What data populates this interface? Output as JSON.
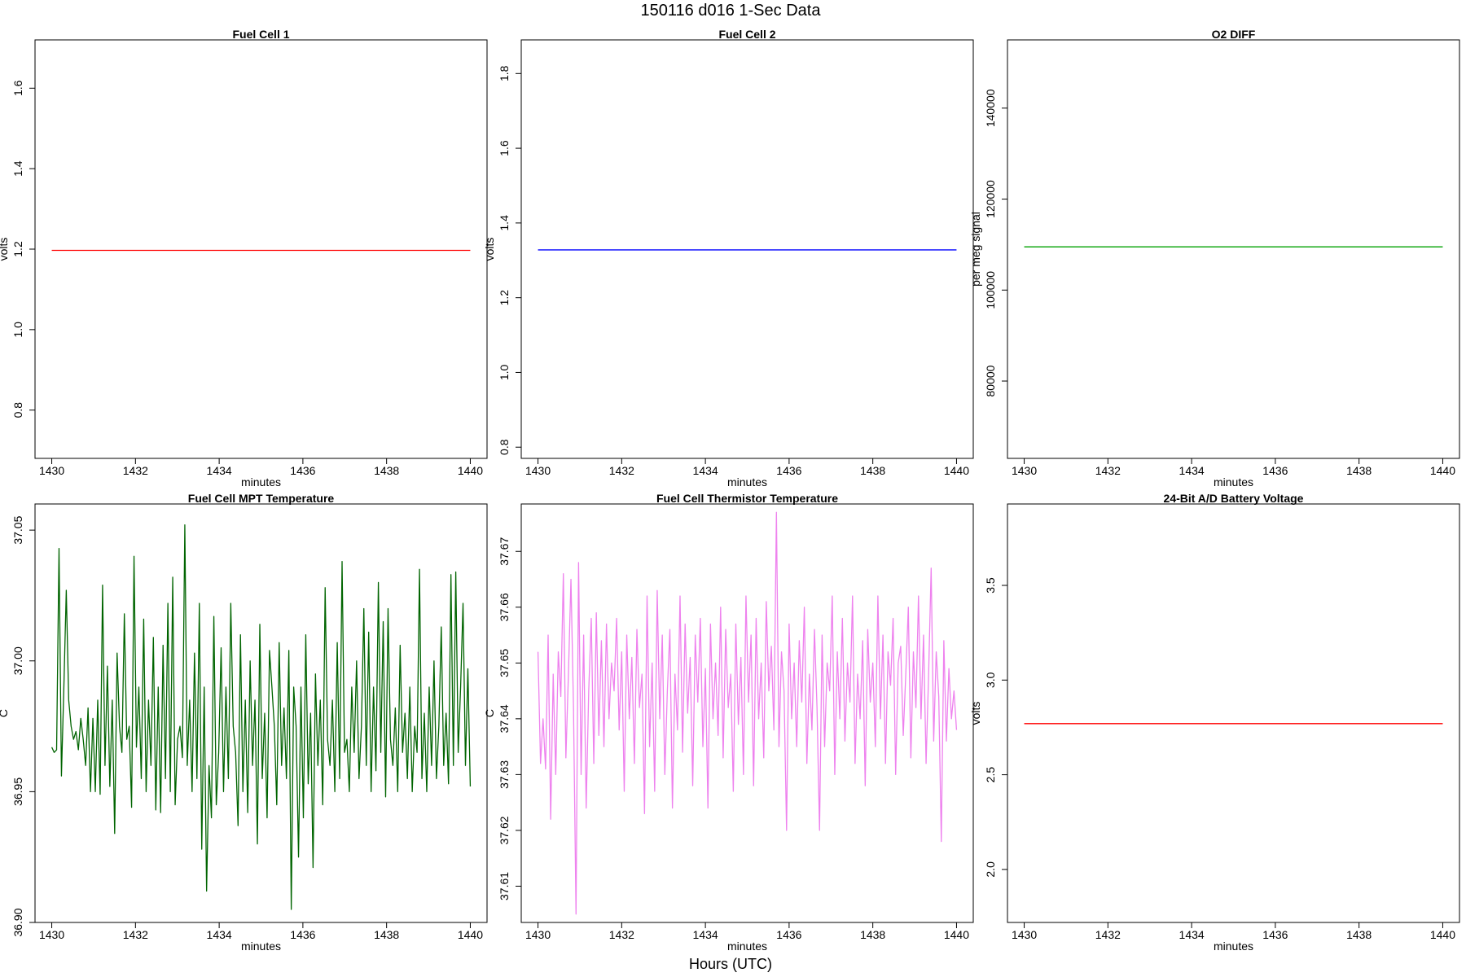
{
  "figure": {
    "title": "150116   d016   1-Sec Data",
    "bottom_label": "Hours (UTC)"
  },
  "chart_data": [
    {
      "type": "line",
      "title": "Fuel Cell 1",
      "xlabel": "minutes",
      "ylabel": "volts",
      "xlim": [
        1429.6,
        1440.4
      ],
      "ylim": [
        0.68,
        1.72
      ],
      "xticks": [
        1430,
        1432,
        1434,
        1436,
        1438,
        1440
      ],
      "xtick_labels": [
        "1430",
        "1432",
        "1434",
        "1436",
        "1438",
        "1440"
      ],
      "yticks": [
        0.8,
        1.0,
        1.2,
        1.4,
        1.6
      ],
      "ytick_labels": [
        "0.8",
        "1.0",
        "1.2",
        "1.4",
        "1.6"
      ],
      "color": "#ff0000",
      "series": [
        {
          "x": [
            1430,
            1440
          ],
          "y": [
            1.197,
            1.197
          ]
        }
      ]
    },
    {
      "type": "line",
      "title": "Fuel Cell 2",
      "xlabel": "minutes",
      "ylabel": "volts",
      "xlim": [
        1429.6,
        1440.4
      ],
      "ylim": [
        0.77,
        1.89
      ],
      "xticks": [
        1430,
        1432,
        1434,
        1436,
        1438,
        1440
      ],
      "xtick_labels": [
        "1430",
        "1432",
        "1434",
        "1436",
        "1438",
        "1440"
      ],
      "yticks": [
        0.8,
        1.0,
        1.2,
        1.4,
        1.6,
        1.8
      ],
      "ytick_labels": [
        "0.8",
        "1.0",
        "1.2",
        "1.4",
        "1.6",
        "1.8"
      ],
      "color": "#0000ff",
      "series": [
        {
          "x": [
            1430,
            1440
          ],
          "y": [
            1.328,
            1.328
          ]
        }
      ]
    },
    {
      "type": "line",
      "title": "O2 DIFF",
      "xlabel": "minutes",
      "ylabel": "per meg signal",
      "xlim": [
        1429.6,
        1440.4
      ],
      "ylim": [
        63000,
        155000
      ],
      "xticks": [
        1430,
        1432,
        1434,
        1436,
        1438,
        1440
      ],
      "xtick_labels": [
        "1430",
        "1432",
        "1434",
        "1436",
        "1438",
        "1440"
      ],
      "yticks": [
        80000,
        100000,
        120000,
        140000
      ],
      "ytick_labels": [
        "80000",
        "100000",
        "120000",
        "140000"
      ],
      "color": "#00a000",
      "series": [
        {
          "x": [
            1430,
            1440
          ],
          "y": [
            109500,
            109500
          ]
        }
      ]
    },
    {
      "type": "line",
      "title": "Fuel Cell MPT Temperature",
      "xlabel": "minutes",
      "ylabel": "C",
      "xlim": [
        1429.6,
        1440.4
      ],
      "ylim": [
        36.9,
        37.06
      ],
      "xticks": [
        1430,
        1432,
        1434,
        1436,
        1438,
        1440
      ],
      "xtick_labels": [
        "1430",
        "1432",
        "1434",
        "1436",
        "1438",
        "1440"
      ],
      "yticks": [
        36.9,
        36.95,
        37.0,
        37.05
      ],
      "ytick_labels": [
        "36.90",
        "36.95",
        "37.00",
        "37.05"
      ],
      "color": "#006400",
      "series": [
        {
          "x_start": 1430,
          "x_end": 1440,
          "y": [
            36.967,
            36.965,
            36.966,
            37.043,
            36.956,
            36.99,
            37.027,
            36.985,
            36.975,
            36.97,
            36.973,
            36.966,
            36.978,
            36.97,
            36.96,
            36.982,
            36.95,
            36.978,
            36.95,
            36.985,
            36.949,
            37.029,
            36.96,
            36.998,
            36.952,
            36.985,
            36.934,
            37.003,
            36.975,
            36.965,
            37.018,
            36.97,
            36.975,
            36.944,
            37.04,
            36.967,
            36.99,
            36.955,
            37.016,
            36.95,
            36.985,
            36.96,
            37.009,
            36.943,
            36.99,
            36.942,
            37.006,
            36.955,
            37.022,
            36.95,
            37.032,
            36.945,
            36.97,
            36.975,
            36.963,
            37.052,
            36.96,
            36.985,
            36.95,
            37.003,
            36.955,
            37.022,
            36.928,
            36.99,
            36.912,
            36.96,
            36.94,
            37.017,
            36.945,
            36.965,
            37.005,
            36.95,
            36.99,
            36.955,
            37.022,
            36.975,
            36.965,
            36.937,
            37.01,
            36.95,
            36.985,
            36.942,
            37.0,
            36.96,
            36.985,
            36.93,
            37.014,
            36.955,
            36.98,
            36.94,
            37.004,
            36.99,
            36.975,
            36.945,
            37.007,
            36.96,
            36.982,
            36.955,
            37.004,
            36.905,
            36.99,
            36.975,
            36.925,
            36.99,
            36.94,
            37.01,
            36.953,
            36.98,
            36.921,
            36.995,
            36.96,
            36.985,
            36.945,
            37.028,
            36.97,
            36.96,
            36.985,
            36.95,
            37.007,
            36.955,
            37.038,
            36.965,
            36.97,
            36.95,
            36.99,
            36.965,
            37.0,
            36.955,
            36.975,
            37.02,
            36.96,
            37.011,
            36.95,
            36.99,
            36.958,
            37.03,
            36.965,
            37.015,
            36.948,
            37.02,
            36.97,
            36.96,
            36.982,
            36.95,
            37.006,
            36.965,
            36.98,
            36.955,
            36.99,
            36.95,
            36.975,
            36.965,
            37.035,
            36.955,
            36.98,
            36.95,
            36.99,
            36.96,
            37.0,
            36.955,
            36.975,
            37.013,
            36.96,
            36.98,
            36.953,
            37.033,
            36.96,
            37.034,
            36.965,
            36.99,
            37.022,
            36.96,
            36.997,
            36.952
          ]
        }
      ]
    },
    {
      "type": "line",
      "title": "Fuel Cell Thermistor Temperature",
      "xlabel": "minutes",
      "ylabel": "C",
      "xlim": [
        1429.6,
        1440.4
      ],
      "ylim": [
        37.6035,
        37.6785
      ],
      "xticks": [
        1430,
        1432,
        1434,
        1436,
        1438,
        1440
      ],
      "xtick_labels": [
        "1430",
        "1432",
        "1434",
        "1436",
        "1438",
        "1440"
      ],
      "yticks": [
        37.61,
        37.62,
        37.63,
        37.64,
        37.65,
        37.66,
        37.67
      ],
      "ytick_labels": [
        "37.61",
        "37.62",
        "37.63",
        "37.64",
        "37.65",
        "37.66",
        "37.67"
      ],
      "color": "#ee82ee",
      "series": [
        {
          "x_start": 1430,
          "x_end": 1440,
          "y": [
            37.652,
            37.632,
            37.64,
            37.631,
            37.655,
            37.622,
            37.648,
            37.63,
            37.652,
            37.644,
            37.666,
            37.633,
            37.648,
            37.665,
            37.642,
            37.605,
            37.668,
            37.63,
            37.655,
            37.624,
            37.645,
            37.658,
            37.632,
            37.659,
            37.637,
            37.654,
            37.635,
            37.657,
            37.64,
            37.65,
            37.645,
            37.658,
            37.638,
            37.652,
            37.627,
            37.655,
            37.64,
            37.651,
            37.632,
            37.656,
            37.642,
            37.648,
            37.623,
            37.662,
            37.635,
            37.65,
            37.627,
            37.663,
            37.64,
            37.655,
            37.63,
            37.645,
            37.656,
            37.624,
            37.648,
            37.638,
            37.662,
            37.634,
            37.657,
            37.641,
            37.651,
            37.628,
            37.655,
            37.643,
            37.658,
            37.635,
            37.649,
            37.624,
            37.657,
            37.64,
            37.65,
            37.637,
            37.66,
            37.633,
            37.656,
            37.642,
            37.648,
            37.627,
            37.657,
            37.639,
            37.651,
            37.63,
            37.662,
            37.643,
            37.655,
            37.628,
            37.658,
            37.64,
            37.65,
            37.633,
            37.661,
            37.645,
            37.653,
            37.638,
            37.677,
            37.635,
            37.652,
            37.645,
            37.62,
            37.657,
            37.64,
            37.65,
            37.635,
            37.654,
            37.643,
            37.66,
            37.632,
            37.648,
            37.638,
            37.656,
            37.642,
            37.62,
            37.655,
            37.635,
            37.65,
            37.645,
            37.662,
            37.63,
            37.652,
            37.64,
            37.658,
            37.636,
            37.65,
            37.643,
            37.662,
            37.632,
            37.648,
            37.64,
            37.654,
            37.628,
            37.656,
            37.643,
            37.65,
            37.635,
            37.662,
            37.64,
            37.655,
            37.632,
            37.652,
            37.646,
            37.658,
            37.63,
            37.65,
            37.653,
            37.637,
            37.648,
            37.66,
            37.633,
            37.652,
            37.642,
            37.662,
            37.64,
            37.655,
            37.632,
            37.648,
            37.667,
            37.636,
            37.652,
            37.644,
            37.618,
            37.654,
            37.636,
            37.649,
            37.64,
            37.645,
            37.638
          ]
        }
      ]
    },
    {
      "type": "line",
      "title": "24-Bit A/D Battery Voltage",
      "xlabel": "minutes",
      "ylabel": "volts",
      "xlim": [
        1429.6,
        1440.4
      ],
      "ylim": [
        1.72,
        3.93
      ],
      "xticks": [
        1430,
        1432,
        1434,
        1436,
        1438,
        1440
      ],
      "xtick_labels": [
        "1430",
        "1432",
        "1434",
        "1436",
        "1438",
        "1440"
      ],
      "yticks": [
        2.0,
        2.5,
        3.0,
        3.5
      ],
      "ytick_labels": [
        "2.0",
        "2.5",
        "3.0",
        "3.5"
      ],
      "color": "#ff0000",
      "series": [
        {
          "x": [
            1430,
            1440
          ],
          "y": [
            2.77,
            2.77
          ]
        }
      ]
    }
  ]
}
